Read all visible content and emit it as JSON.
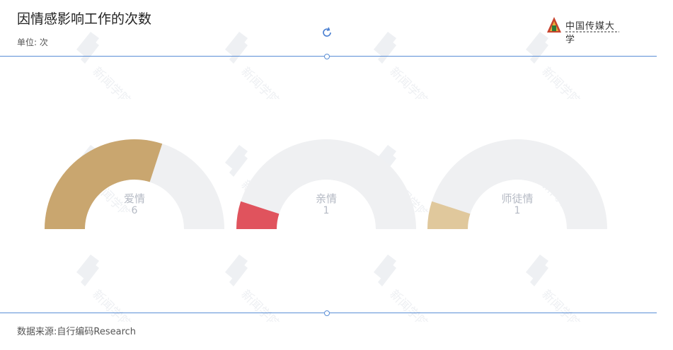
{
  "header": {
    "title": "因情感影响工作的次数",
    "unit": "单位: 次",
    "logo_text": "中国传媒大学"
  },
  "watermark": {
    "text": "新闻学院"
  },
  "footer": {
    "source": "数据来源:自行编码Research"
  },
  "colors": {
    "track": "#eff0f2",
    "label": "#b5bac4",
    "axis_line": "#5b8fd6"
  },
  "chart_data": {
    "type": "gauge",
    "max": 10,
    "series": [
      {
        "name": "爱情",
        "value": 6,
        "color": "#c9a66f"
      },
      {
        "name": "亲情",
        "value": 1,
        "color": "#e0535d"
      },
      {
        "name": "师徒情",
        "value": 1,
        "color": "#e0c89c"
      }
    ]
  }
}
